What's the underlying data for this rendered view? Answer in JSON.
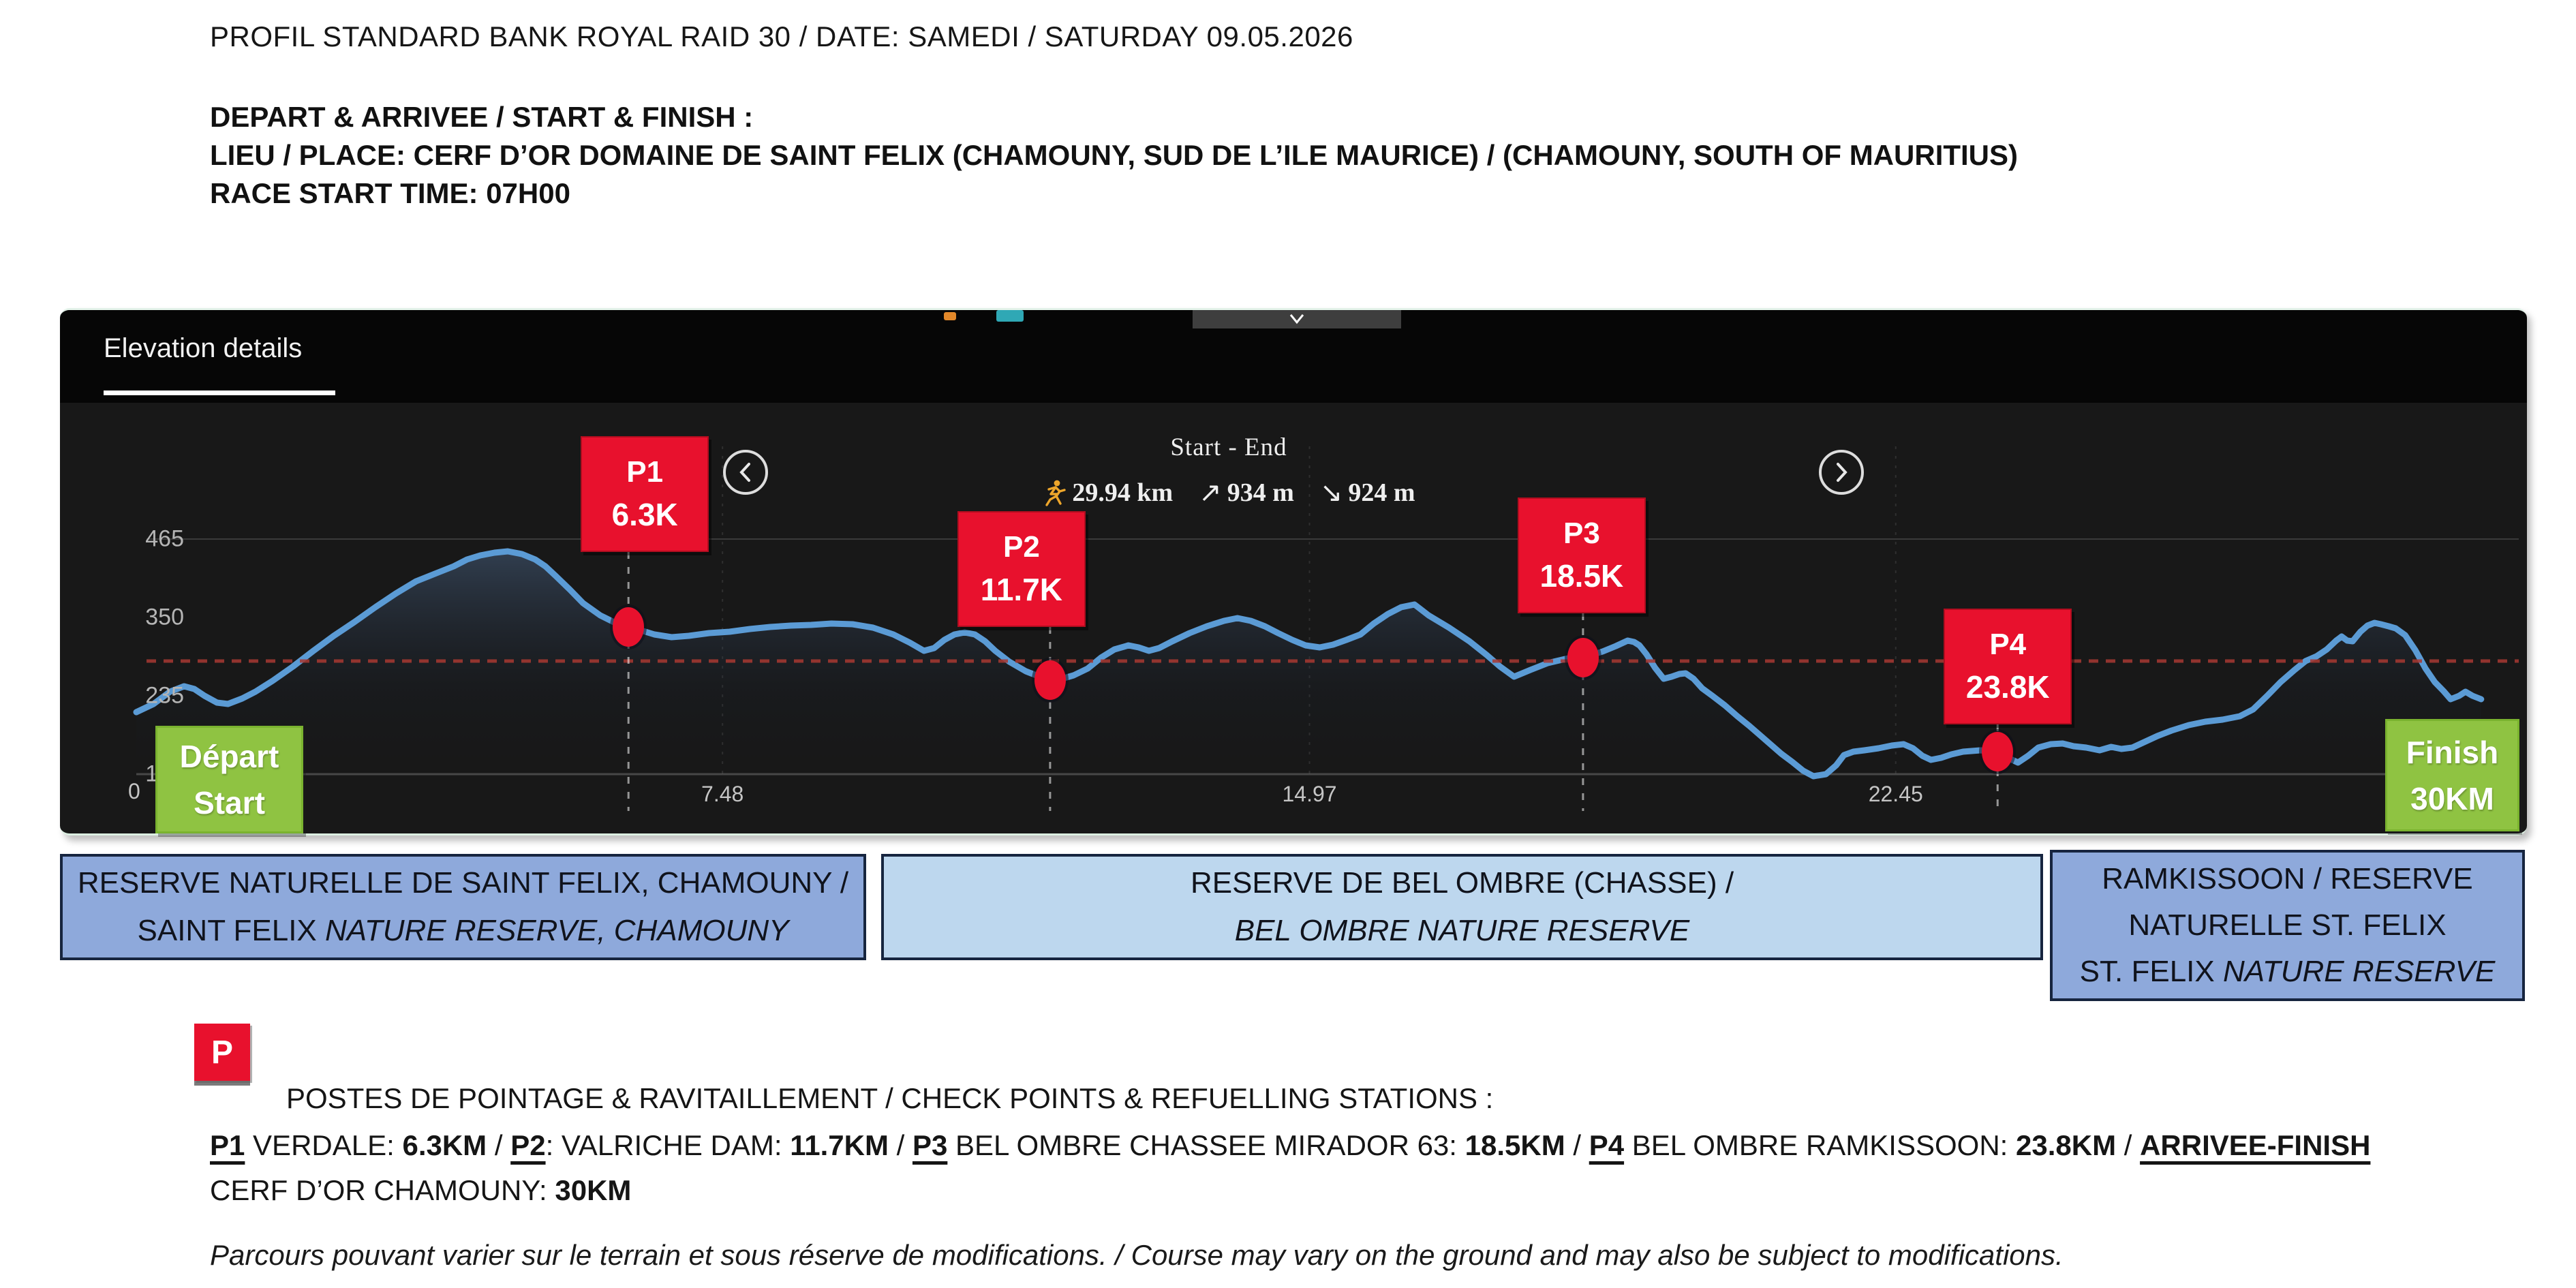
{
  "header": {
    "title": "PROFIL STANDARD BANK ROYAL RAID 30 / DATE: SAMEDI / SATURDAY 09.05.2026",
    "start_finish_heading": "DEPART & ARRIVEE / START & FINISH :",
    "place_line": "LIEU / PLACE: CERF D’OR DOMAINE DE SAINT FELIX (CHAMOUNY, SUD DE L’ILE MAURICE) / (CHAMOUNY, SOUTH OF MAURITIUS)",
    "start_time_line": "RACE START TIME: 07H00"
  },
  "chart": {
    "tab_label": "Elevation details",
    "stats_title": "Start - End",
    "total_distance": "29.94 km",
    "total_ascent": "934 m",
    "total_descent": "924 m",
    "ascent_arrow": "↗",
    "descent_arrow": "↘",
    "colors": {
      "line": "#5b9bd5",
      "marker_red": "#e8112d",
      "flag_green": "#8fc342",
      "avg_line": "#a83832"
    }
  },
  "chart_data": {
    "type": "area",
    "title": "Start - End",
    "x_unit": "km",
    "y_unit": "m",
    "xlim": [
      0,
      30.5
    ],
    "ylim": [
      120,
      465
    ],
    "x_ticks": [
      7.48,
      14.97,
      22.45
    ],
    "x_origin_label": "0",
    "y_ticks": [
      465,
      350,
      235,
      120
    ],
    "avg_elevation_line": 286,
    "total_distance_km": 29.94,
    "total_ascent_m": 934,
    "total_descent_m": 924,
    "checkpoints": [
      {
        "id": "P1",
        "label": "P1",
        "distance_label": "6.3K",
        "km": 6.28,
        "el": 336
      },
      {
        "id": "P2",
        "label": "P2",
        "distance_label": "11.7K",
        "km": 11.66,
        "el": 258
      },
      {
        "id": "P3",
        "label": "P3",
        "distance_label": "18.5K",
        "km": 18.46,
        "el": 291
      },
      {
        "id": "P4",
        "label": "P4",
        "distance_label": "23.8K",
        "km": 23.75,
        "el": 153
      }
    ],
    "start": {
      "labels": [
        "Départ",
        "Start"
      ]
    },
    "finish": {
      "labels": [
        "Finish",
        "30KM"
      ]
    },
    "profile": [
      [
        0,
        211
      ],
      [
        0.22,
        223
      ],
      [
        0.43,
        241
      ],
      [
        0.61,
        249
      ],
      [
        0.74,
        245
      ],
      [
        0.87,
        235
      ],
      [
        1.03,
        225
      ],
      [
        1.17,
        223
      ],
      [
        1.35,
        231
      ],
      [
        1.52,
        241
      ],
      [
        1.74,
        257
      ],
      [
        2.0,
        278
      ],
      [
        2.26,
        301
      ],
      [
        2.52,
        323
      ],
      [
        2.78,
        343
      ],
      [
        3.05,
        365
      ],
      [
        3.31,
        385
      ],
      [
        3.57,
        403
      ],
      [
        3.83,
        415
      ],
      [
        4.05,
        425
      ],
      [
        4.22,
        435
      ],
      [
        4.39,
        441
      ],
      [
        4.57,
        445
      ],
      [
        4.74,
        447
      ],
      [
        4.92,
        443
      ],
      [
        5.09,
        435
      ],
      [
        5.22,
        425
      ],
      [
        5.35,
        411
      ],
      [
        5.53,
        391
      ],
      [
        5.7,
        371
      ],
      [
        5.92,
        353
      ],
      [
        6.13,
        341
      ],
      [
        6.28,
        336
      ],
      [
        6.44,
        331
      ],
      [
        6.61,
        325
      ],
      [
        6.83,
        321
      ],
      [
        7.05,
        323
      ],
      [
        7.31,
        327
      ],
      [
        7.57,
        329
      ],
      [
        7.83,
        333
      ],
      [
        8.09,
        336
      ],
      [
        8.35,
        338
      ],
      [
        8.61,
        339
      ],
      [
        8.87,
        341
      ],
      [
        9.14,
        340
      ],
      [
        9.4,
        335
      ],
      [
        9.66,
        325
      ],
      [
        9.87,
        313
      ],
      [
        10.05,
        301
      ],
      [
        10.18,
        305
      ],
      [
        10.31,
        317
      ],
      [
        10.44,
        325
      ],
      [
        10.57,
        328
      ],
      [
        10.7,
        325
      ],
      [
        10.83,
        315
      ],
      [
        10.96,
        301
      ],
      [
        11.14,
        285
      ],
      [
        11.35,
        271
      ],
      [
        11.53,
        263
      ],
      [
        11.66,
        258
      ],
      [
        11.81,
        260
      ],
      [
        11.96,
        265
      ],
      [
        12.14,
        275
      ],
      [
        12.31,
        291
      ],
      [
        12.48,
        303
      ],
      [
        12.66,
        309
      ],
      [
        12.79,
        306
      ],
      [
        12.92,
        301
      ],
      [
        13.05,
        305
      ],
      [
        13.22,
        315
      ],
      [
        13.44,
        327
      ],
      [
        13.66,
        337
      ],
      [
        13.88,
        345
      ],
      [
        14.05,
        349
      ],
      [
        14.22,
        345
      ],
      [
        14.4,
        337
      ],
      [
        14.57,
        327
      ],
      [
        14.75,
        317
      ],
      [
        14.92,
        309
      ],
      [
        15.1,
        306
      ],
      [
        15.27,
        310
      ],
      [
        15.44,
        317
      ],
      [
        15.62,
        325
      ],
      [
        15.79,
        341
      ],
      [
        15.97,
        355
      ],
      [
        16.14,
        365
      ],
      [
        16.31,
        369
      ],
      [
        16.49,
        353
      ],
      [
        16.75,
        335
      ],
      [
        17.01,
        315
      ],
      [
        17.23,
        295
      ],
      [
        17.4,
        278
      ],
      [
        17.58,
        263
      ],
      [
        17.79,
        273
      ],
      [
        18.01,
        283
      ],
      [
        18.27,
        290
      ],
      [
        18.46,
        291
      ],
      [
        18.71,
        300
      ],
      [
        18.88,
        308
      ],
      [
        19.03,
        316
      ],
      [
        19.11,
        314
      ],
      [
        19.18,
        309
      ],
      [
        19.27,
        296
      ],
      [
        19.38,
        276
      ],
      [
        19.49,
        260
      ],
      [
        19.59,
        263
      ],
      [
        19.69,
        267
      ],
      [
        19.77,
        268
      ],
      [
        19.87,
        260
      ],
      [
        19.98,
        246
      ],
      [
        20.11,
        235
      ],
      [
        20.27,
        221
      ],
      [
        20.43,
        205
      ],
      [
        20.58,
        191
      ],
      [
        20.71,
        178
      ],
      [
        20.86,
        163
      ],
      [
        20.99,
        150
      ],
      [
        21.13,
        138
      ],
      [
        21.27,
        125
      ],
      [
        21.4,
        117
      ],
      [
        21.56,
        120
      ],
      [
        21.69,
        133
      ],
      [
        21.79,
        148
      ],
      [
        21.91,
        153
      ],
      [
        22.05,
        155
      ],
      [
        22.23,
        158
      ],
      [
        22.4,
        162
      ],
      [
        22.55,
        164
      ],
      [
        22.67,
        158
      ],
      [
        22.79,
        147
      ],
      [
        22.9,
        141
      ],
      [
        23.03,
        144
      ],
      [
        23.16,
        149
      ],
      [
        23.31,
        153
      ],
      [
        23.53,
        155
      ],
      [
        23.75,
        153
      ],
      [
        23.9,
        143
      ],
      [
        24.01,
        137
      ],
      [
        24.14,
        147
      ],
      [
        24.27,
        159
      ],
      [
        24.43,
        164
      ],
      [
        24.58,
        165
      ],
      [
        24.72,
        161
      ],
      [
        24.88,
        159
      ],
      [
        25.05,
        155
      ],
      [
        25.2,
        160
      ],
      [
        25.33,
        157
      ],
      [
        25.47,
        159
      ],
      [
        25.62,
        167
      ],
      [
        25.79,
        176
      ],
      [
        25.97,
        184
      ],
      [
        26.19,
        192
      ],
      [
        26.4,
        197
      ],
      [
        26.62,
        200
      ],
      [
        26.84,
        205
      ],
      [
        27.01,
        215
      ],
      [
        27.19,
        235
      ],
      [
        27.36,
        255
      ],
      [
        27.54,
        273
      ],
      [
        27.68,
        286
      ],
      [
        27.82,
        293
      ],
      [
        27.95,
        303
      ],
      [
        28.07,
        316
      ],
      [
        28.14,
        322
      ],
      [
        28.21,
        316
      ],
      [
        28.28,
        315
      ],
      [
        28.38,
        329
      ],
      [
        28.47,
        338
      ],
      [
        28.56,
        342
      ],
      [
        28.64,
        340
      ],
      [
        28.74,
        337
      ],
      [
        28.83,
        334
      ],
      [
        28.95,
        324
      ],
      [
        29.08,
        302
      ],
      [
        29.21,
        275
      ],
      [
        29.33,
        255
      ],
      [
        29.44,
        242
      ],
      [
        29.53,
        230
      ],
      [
        29.64,
        235
      ],
      [
        29.72,
        241
      ],
      [
        29.81,
        235
      ],
      [
        29.92,
        230
      ]
    ]
  },
  "reserves": [
    {
      "bg": "#8ea9db",
      "lines": [
        [
          {
            "t": "RESERVE NATURELLE DE SAINT FELIX, CHAMOUNY /",
            "i": false
          }
        ],
        [
          {
            "t": "SAINT FELIX ",
            "i": false
          },
          {
            "t": "NATURE RESERVE, CHAMOUNY",
            "i": true
          }
        ]
      ]
    },
    {
      "bg": "#bdd7ee",
      "lines": [
        [
          {
            "t": "RESERVE DE BEL OMBRE (CHASSE) /",
            "i": false
          }
        ],
        [
          {
            "t": "BEL OMBRE NATURE RESERVE",
            "i": true
          }
        ]
      ]
    },
    {
      "bg": "#8ea9db",
      "lines": [
        [
          {
            "t": "RAMKISSOON / RESERVE",
            "i": false
          }
        ],
        [
          {
            "t": "NATURELLE ST. FELIX",
            "i": false
          }
        ],
        [
          {
            "t": "ST. FELIX ",
            "i": false
          },
          {
            "t": "NATURE RESERVE",
            "i": true
          }
        ]
      ]
    }
  ],
  "legend": {
    "p_symbol": "P",
    "title": "POSTES DE POINTAGE & RAVITAILLEMENT / CHECK POINTS & REFUELLING STATIONS :",
    "checkpoint_segments": [
      {
        "t": "P1",
        "b": true,
        "u": true
      },
      {
        "t": " VERDALE: ",
        "b": false,
        "u": false
      },
      {
        "t": "6.3KM",
        "b": true,
        "u": false
      },
      {
        "t": " / ",
        "b": false,
        "u": false
      },
      {
        "t": "P2",
        "b": true,
        "u": true
      },
      {
        "t": ": VALRICHE DAM: ",
        "b": false,
        "u": false
      },
      {
        "t": "11.7KM",
        "b": true,
        "u": false
      },
      {
        "t": " / ",
        "b": false,
        "u": false
      },
      {
        "t": "P3",
        "b": true,
        "u": true
      },
      {
        "t": " BEL OMBRE CHASSEE MIRADOR 63: ",
        "b": false,
        "u": false
      },
      {
        "t": "18.5KM",
        "b": true,
        "u": false
      },
      {
        "t": " / ",
        "b": false,
        "u": false
      },
      {
        "t": "P4",
        "b": true,
        "u": true
      },
      {
        "t": " BEL OMBRE RAMKISSOON: ",
        "b": false,
        "u": false
      },
      {
        "t": "23.8KM",
        "b": true,
        "u": false
      },
      {
        "t": " / ",
        "b": false,
        "u": false
      },
      {
        "t": "ARRIVEE-FINISH",
        "b": true,
        "u": true
      },
      {
        "t": " CERF D’OR CHAMOUNY: ",
        "b": false,
        "u": false
      },
      {
        "t": "30KM",
        "b": true,
        "u": false
      }
    ],
    "note": "Parcours pouvant varier sur le terrain et sous réserve de modifications. / Course may vary on the ground and may also be subject to modifications."
  }
}
